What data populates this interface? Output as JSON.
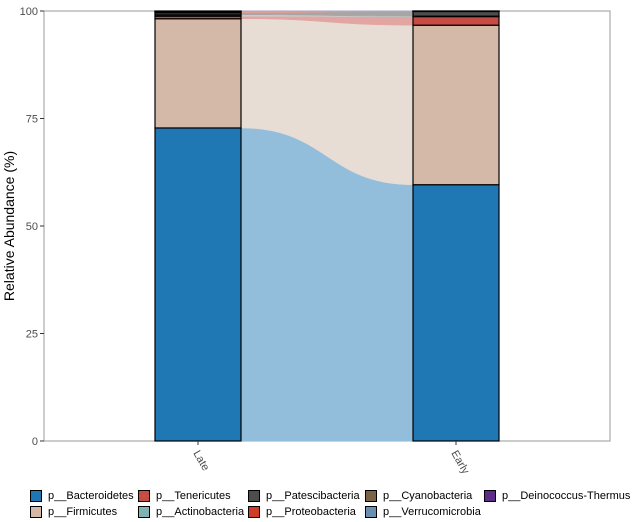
{
  "chart_data": {
    "type": "bar",
    "stacked": true,
    "alluvial_flows": true,
    "categories": [
      "Late",
      "Early"
    ],
    "ylabel": "Relative Abundance (%)",
    "xlabel": "",
    "ylim": [
      0,
      100
    ],
    "yticks": [
      0,
      25,
      50,
      75,
      100
    ],
    "grid": false,
    "legend_position": "bottom",
    "series": [
      {
        "name": "p__Bacteroidetes",
        "color": "#1F78B4",
        "flow_color": "#92BDDB",
        "values": [
          72.8,
          59.6
        ]
      },
      {
        "name": "p__Firmicutes",
        "color": "#D4B9A8",
        "flow_color": "#E8DDD4",
        "values": [
          25.4,
          37.1
        ]
      },
      {
        "name": "p__Tenericutes",
        "color": "#C84B43",
        "flow_color": "#E3A5A1",
        "values": [
          0.6,
          2.0
        ]
      },
      {
        "name": "p__Actinobacteria",
        "color": "#7FB2B0",
        "flow_color": "#BFD8D7",
        "values": [
          0.3,
          0.1
        ]
      },
      {
        "name": "p__Patescibacteria",
        "color": "#4D4D4D",
        "flow_color": "#A6A6A6",
        "values": [
          0.5,
          1.1
        ]
      },
      {
        "name": "p__Proteobacteria",
        "color": "#D03A28",
        "flow_color": "#E79C93",
        "values": [
          0.2,
          0.05
        ]
      },
      {
        "name": "p__Cyanobacteria",
        "color": "#7A6445",
        "flow_color": "#BCB1A2",
        "values": [
          0.1,
          0.03
        ]
      },
      {
        "name": "p__Verrucomicrobia",
        "color": "#6A8FB0",
        "flow_color": "#B4C7D7",
        "values": [
          0.07,
          0.01
        ]
      },
      {
        "name": "p__Deinococcus-Thermus",
        "color": "#5E2D8A",
        "flow_color": "#AE96C4",
        "values": [
          0.03,
          0.01
        ]
      }
    ]
  },
  "legend_order": [
    "p__Bacteroidetes",
    "p__Tenericutes",
    "p__Patescibacteria",
    "p__Cyanobacteria",
    "p__Deinococcus-Thermus",
    "p__Firmicutes",
    "p__Actinobacteria",
    "p__Proteobacteria",
    "p__Verrucomicrobia"
  ]
}
